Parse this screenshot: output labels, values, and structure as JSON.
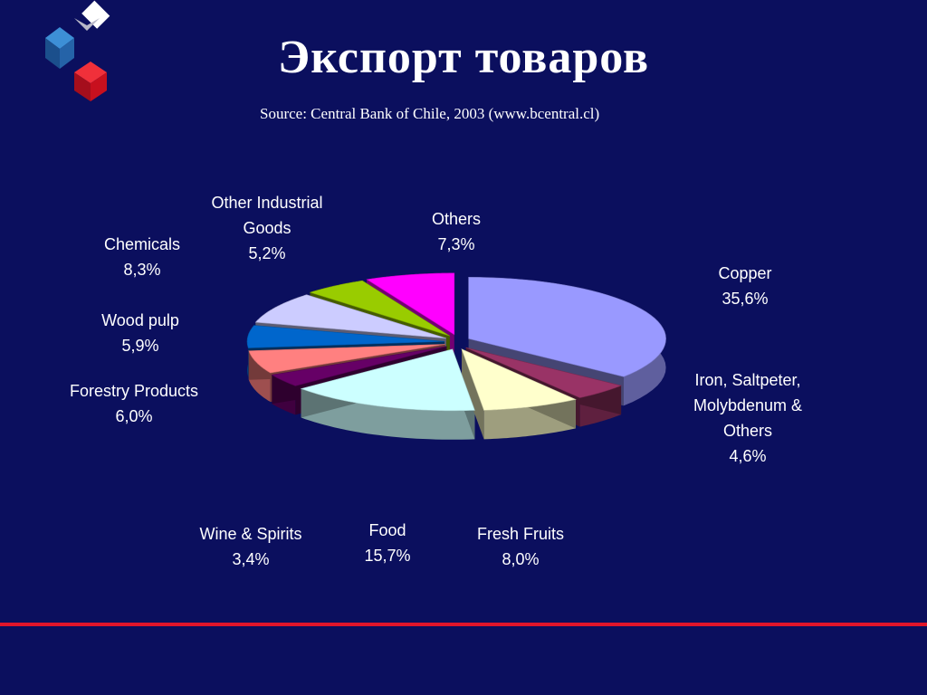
{
  "title": "Экспорт товаров",
  "source": "Source:  Central Bank of Chile, 2003  (www.bcentral.cl)",
  "colors": {
    "background": "#0b0f5e",
    "accent_line": "#e1152a",
    "logo": [
      "#ffffff",
      "#2a7bc2",
      "#e1152a"
    ]
  },
  "chart_data": {
    "type": "pie",
    "three_d": true,
    "exploded": true,
    "slices": [
      {
        "label": "Copper",
        "value": 35.6,
        "value_text": "35,6%",
        "color": "#9999ff"
      },
      {
        "label": "Iron, Saltpeter, Molybdenum & Others",
        "value": 4.6,
        "value_text": "4,6%",
        "color": "#993366"
      },
      {
        "label": "Fresh Fruits",
        "value": 8.0,
        "value_text": "8,0%",
        "color": "#ffffcc"
      },
      {
        "label": "Food",
        "value": 15.7,
        "value_text": "15,7%",
        "color": "#ccffff"
      },
      {
        "label": "Wine & Spirits",
        "value": 3.4,
        "value_text": "3,4%",
        "color": "#660066"
      },
      {
        "label": "Forestry Products",
        "value": 6.0,
        "value_text": "6,0%",
        "color": "#ff8080"
      },
      {
        "label": "Wood pulp",
        "value": 5.9,
        "value_text": "5,9%",
        "color": "#0066cc"
      },
      {
        "label": "Chemicals",
        "value": 8.3,
        "value_text": "8,3%",
        "color": "#ccccff"
      },
      {
        "label": "Other Industrial Goods",
        "value": 5.2,
        "value_text": "5,2%",
        "color": "#99cc00"
      },
      {
        "label": "Others",
        "value": 7.3,
        "value_text": "7,3%",
        "color": "#ff00ff"
      }
    ],
    "label_lines": [
      [
        "Copper",
        "35,6%"
      ],
      [
        "Iron, Saltpeter,",
        "Molybdenum &",
        "Others",
        "4,6%"
      ],
      [
        "Fresh Fruits",
        "8,0%"
      ],
      [
        "Food",
        "15,7%"
      ],
      [
        "Wine & Spirits",
        "3,4%"
      ],
      [
        "Forestry Products",
        "6,0%"
      ],
      [
        "Wood pulp",
        "5,9%"
      ],
      [
        "Chemicals",
        "8,3%"
      ],
      [
        "Other Industrial",
        "Goods",
        "5,2%"
      ],
      [
        "Others",
        "7,3%"
      ]
    ]
  }
}
